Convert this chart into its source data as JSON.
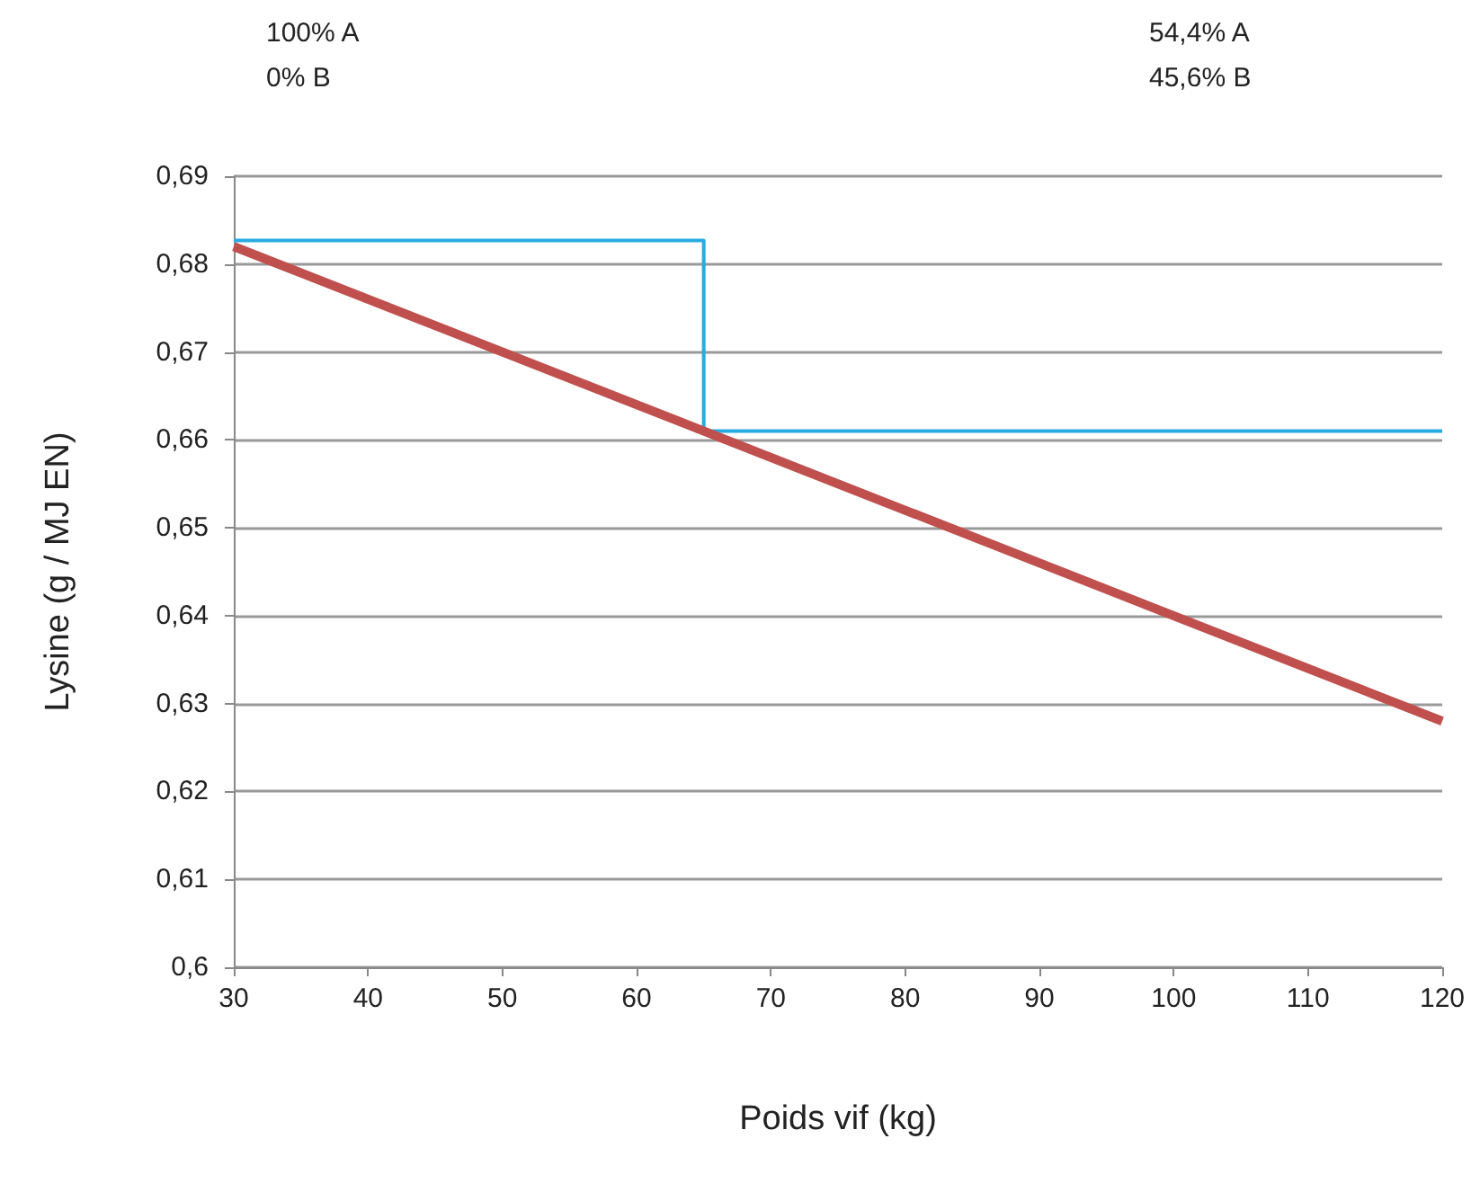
{
  "chart_data": {
    "type": "line",
    "xlabel": "Poids vif (kg)",
    "ylabel": "Lysine (g / MJ EN)",
    "annotations": [
      "100% A\n0% B",
      "54,4% A\n45,6% B"
    ],
    "series": [
      {
        "type": "step",
        "color": "#29abe2",
        "x": [
          30,
          65,
          120
        ],
        "values": [
          0.6827,
          0.661,
          0.661
        ]
      },
      {
        "color": "#c0504d",
        "x": [
          30,
          120
        ],
        "values": [
          0.682,
          0.628
        ]
      }
    ],
    "xlim": [
      30,
      120
    ],
    "xticks": [
      30,
      40,
      50,
      60,
      70,
      80,
      90,
      100,
      110,
      120
    ],
    "ylim": [
      0.6,
      0.69
    ],
    "yticks": [
      {
        "value": 0.6,
        "label": "0,6"
      },
      {
        "value": 0.61,
        "label": "0,61"
      },
      {
        "value": 0.62,
        "label": "0,62"
      },
      {
        "value": 0.63,
        "label": "0,63"
      },
      {
        "value": 0.64,
        "label": "0,64"
      },
      {
        "value": 0.65,
        "label": "0,65"
      },
      {
        "value": 0.66,
        "label": "0,66"
      },
      {
        "value": 0.67,
        "label": "0,67"
      },
      {
        "value": 0.68,
        "label": "0,68"
      },
      {
        "value": 0.69,
        "label": "0,69"
      }
    ],
    "grid": "y",
    "marker": "none"
  }
}
